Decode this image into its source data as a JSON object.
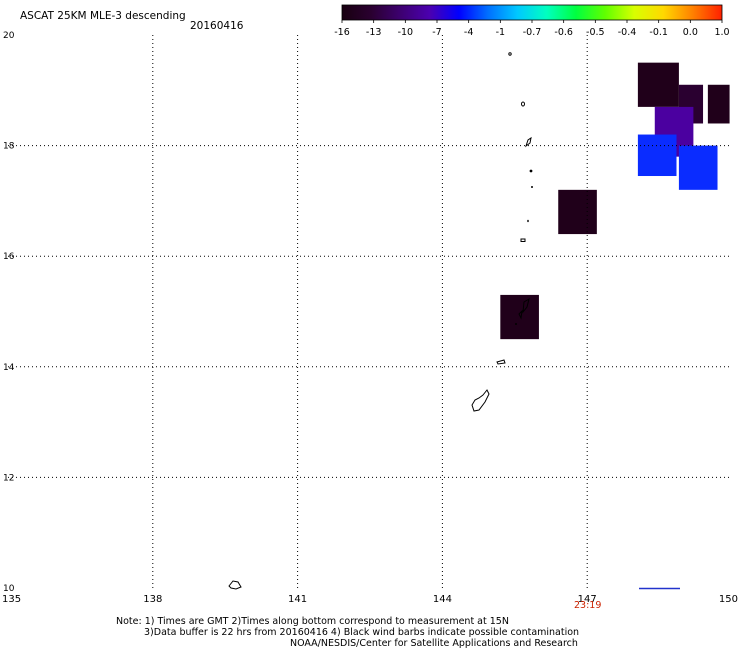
{
  "header": {
    "title": "ASCAT 25KM MLE-3 descending",
    "date": "20160416"
  },
  "colorbar": {
    "labels": [
      "-16",
      "-13",
      "-10",
      "-7",
      "-4",
      "-1",
      "-0.7",
      "-0.6",
      "-0.5",
      "-0.4",
      "-0.1",
      "0.0",
      "1.0"
    ],
    "colors": [
      "#180010",
      "#2a0030",
      "#3d0070",
      "#4b00b0",
      "#0000ff",
      "#0070ff",
      "#00c8ff",
      "#00ffc0",
      "#00ff40",
      "#60ff00",
      "#d8ff00",
      "#ffd800",
      "#ff8000",
      "#ff2000"
    ]
  },
  "axes": {
    "x_ticks": [
      "135",
      "138",
      "141",
      "144",
      "147",
      "150"
    ],
    "y_ticks": [
      "20",
      "18",
      "16",
      "14",
      "12",
      "10"
    ],
    "x_range": [
      135,
      150
    ],
    "y_range": [
      10,
      20
    ]
  },
  "time_label": "23:19",
  "time_label_color": "#cc2200",
  "notes": {
    "line1": "Note: 1) Times are GMT 2)Times along bottom correspond to measurement at 15N",
    "line2": "3)Data buffer is 22 hrs from 20160416 4) Black wind barbs indicate possible contamination",
    "line3": "NOAA/NESDIS/Center for Satellite Applications and Research"
  },
  "cells": [
    {
      "lon0": 148.05,
      "lon1": 148.9,
      "lat0": 18.7,
      "lat1": 19.5,
      "color": "#20001a"
    },
    {
      "lon0": 148.9,
      "lon1": 149.4,
      "lat0": 18.4,
      "lat1": 19.1,
      "color": "#2a0030"
    },
    {
      "lon0": 149.5,
      "lon1": 149.95,
      "lat0": 18.4,
      "lat1": 19.1,
      "color": "#20001a"
    },
    {
      "lon0": 148.4,
      "lon1": 149.2,
      "lat0": 17.8,
      "lat1": 18.7,
      "color": "#4b00a0"
    },
    {
      "lon0": 148.05,
      "lon1": 148.85,
      "lat0": 17.45,
      "lat1": 18.2,
      "color": "#0a2cff"
    },
    {
      "lon0": 148.9,
      "lon1": 149.7,
      "lat0": 17.2,
      "lat1": 18.0,
      "color": "#0a2cff"
    },
    {
      "lon0": 146.4,
      "lon1": 147.2,
      "lat0": 16.4,
      "lat1": 17.2,
      "color": "#20001a"
    },
    {
      "lon0": 145.2,
      "lon1": 146.0,
      "lat0": 14.5,
      "lat1": 15.3,
      "color": "#20001a"
    }
  ]
}
